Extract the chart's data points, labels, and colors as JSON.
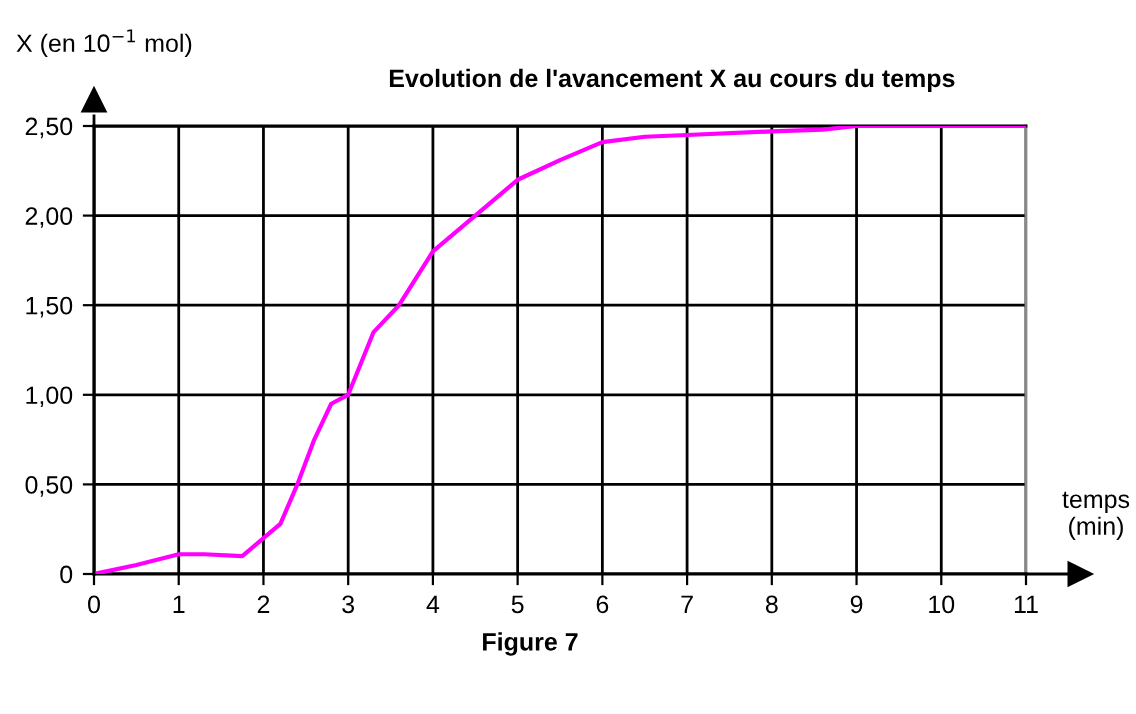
{
  "chart_data": {
    "type": "line",
    "title": "Evolution de l'avancement X au cours du temps",
    "xlabel": "temps\n(min)",
    "ylabel": "X (en 10$^{−1}$ mol)",
    "annotations": [
      "Figure 7"
    ],
    "series": [
      {
        "color": "#ff00ff",
        "x": [
          0,
          0.5,
          1,
          1.3,
          1.75,
          2,
          2.2,
          2.4,
          2.6,
          2.8,
          3,
          3.3,
          3.6,
          4,
          4.5,
          5,
          5.5,
          6,
          6.5,
          7,
          8,
          8.6,
          9,
          9.5,
          11
        ],
        "values": [
          0,
          0.05,
          0.11,
          0.11,
          0.1,
          0.2,
          0.28,
          0.5,
          0.75,
          0.95,
          1.0,
          1.35,
          1.5,
          1.8,
          2.0,
          2.2,
          2.31,
          2.41,
          2.44,
          2.45,
          2.47,
          2.48,
          2.5,
          2.5,
          2.5
        ]
      }
    ],
    "xlim": [
      0,
      11
    ],
    "ylim": [
      0,
      2.5
    ],
    "xticks": [
      0,
      1,
      2,
      3,
      4,
      5,
      6,
      7,
      8,
      9,
      10,
      11
    ],
    "yticks": [
      0,
      {
        "value": 0.5,
        "label": "0,50"
      },
      {
        "value": 1,
        "label": "1,00"
      },
      {
        "value": 1.5,
        "label": "1,50"
      },
      {
        "value": 2,
        "label": "2,00"
      },
      {
        "value": 2.5,
        "label": "2,50"
      }
    ],
    "grid": true,
    "line_style": "solid",
    "marker": "none"
  }
}
